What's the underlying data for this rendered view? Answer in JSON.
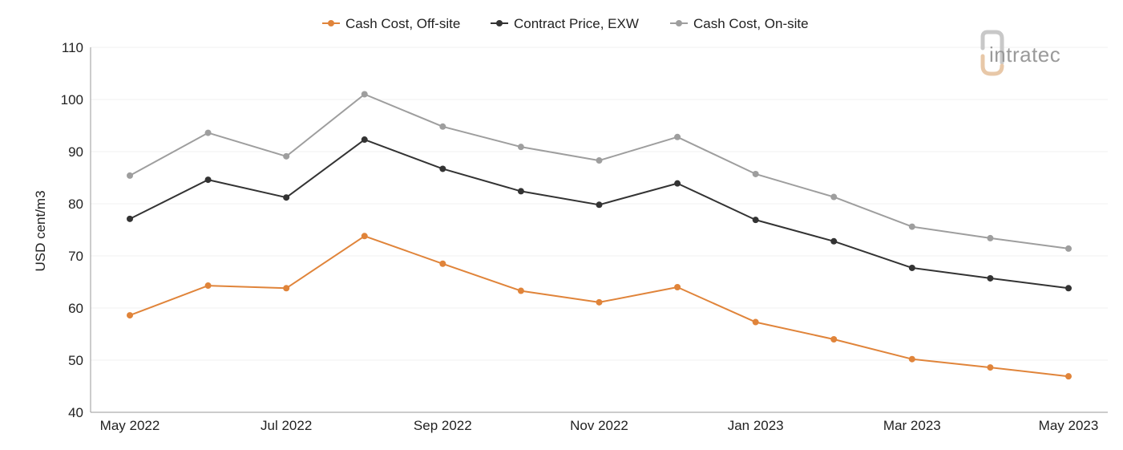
{
  "logo": {
    "text": "intratec"
  },
  "chart_data": {
    "type": "line",
    "title": "",
    "xlabel": "",
    "ylabel": "USD cent/m3",
    "ylim": [
      40,
      110
    ],
    "yticks": [
      40,
      50,
      60,
      70,
      80,
      90,
      100,
      110
    ],
    "grid": true,
    "legend_position": "top",
    "x": [
      "May 2022",
      "Jun 2022",
      "Jul 2022",
      "Aug 2022",
      "Sep 2022",
      "Oct 2022",
      "Nov 2022",
      "Dec 2022",
      "Jan 2023",
      "Feb 2023",
      "Mar 2023",
      "Apr 2023",
      "May 2023"
    ],
    "xtick_labels": [
      "May 2022",
      "",
      "Jul 2022",
      "",
      "Sep 2022",
      "",
      "Nov 2022",
      "",
      "Jan 2023",
      "",
      "Mar 2023",
      "",
      "May 2023"
    ],
    "series": [
      {
        "name": "Cash Cost, Off-site",
        "color": "#e0843a",
        "values": [
          58.6,
          64.3,
          63.8,
          73.8,
          68.5,
          63.3,
          61.1,
          64.0,
          57.3,
          54.0,
          50.2,
          48.6,
          46.9
        ]
      },
      {
        "name": "Contract Price, EXW",
        "color": "#333333",
        "values": [
          77.1,
          84.6,
          81.2,
          92.3,
          86.7,
          82.4,
          79.8,
          83.9,
          76.9,
          72.8,
          67.7,
          65.7,
          63.8
        ]
      },
      {
        "name": "Cash Cost, On-site",
        "color": "#9e9e9e",
        "values": [
          85.4,
          93.6,
          89.1,
          101.0,
          94.8,
          90.9,
          88.3,
          92.8,
          85.7,
          81.3,
          75.6,
          73.4,
          71.4
        ]
      }
    ]
  }
}
